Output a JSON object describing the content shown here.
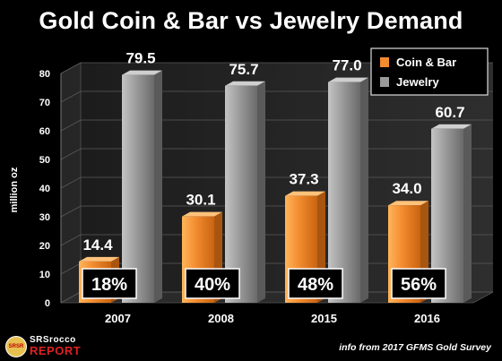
{
  "chart_data": {
    "type": "bar",
    "title": "Gold Coin & Bar vs Jewelry Demand",
    "ylabel": "million oz",
    "ylim": [
      0,
      80
    ],
    "y_ticks": [
      "0",
      "10",
      "20",
      "30",
      "40",
      "50",
      "60",
      "70",
      "80"
    ],
    "categories": [
      "2007",
      "2008",
      "2015",
      "2016"
    ],
    "series": [
      {
        "name": "Coin & Bar",
        "values": [
          14.4,
          30.1,
          37.3,
          34.0
        ],
        "labels": [
          "14.4",
          "30.1",
          "37.3",
          "34.0"
        ],
        "color": "#f28a2e"
      },
      {
        "name": "Jewelry",
        "values": [
          79.5,
          75.7,
          77.0,
          60.7
        ],
        "labels": [
          "79.5",
          "75.7",
          "77.0",
          "60.7"
        ],
        "color": "#9a9a9a"
      }
    ],
    "percent_labels": [
      "18%",
      "40%",
      "48%",
      "56%"
    ],
    "legend": "top-right",
    "grid": true,
    "source": "info from  2017 GFMS Gold Survey"
  },
  "branding": {
    "logo_top": "SRSrocco",
    "logo_bottom": "REPORT",
    "logo_seal": "SRSR"
  }
}
